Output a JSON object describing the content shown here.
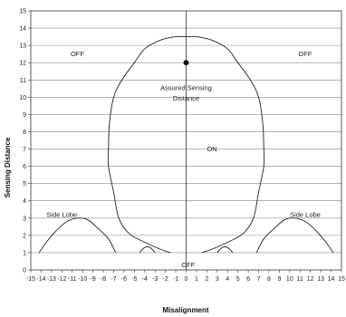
{
  "chart_data": {
    "type": "area",
    "title": "",
    "xlabel": "Misalignment",
    "ylabel": "Sensing Distance",
    "xlim": [
      -15,
      15
    ],
    "ylim": [
      0,
      15
    ],
    "grid": true,
    "x_ticks": [
      -15,
      -14,
      -13,
      -12,
      -11,
      -10,
      -9,
      -8,
      -7,
      -6,
      -5,
      -4,
      -3,
      -2,
      -1,
      0,
      1,
      2,
      3,
      4,
      5,
      6,
      7,
      8,
      9,
      10,
      11,
      12,
      13,
      14,
      15
    ],
    "y_ticks": [
      0,
      1,
      2,
      3,
      4,
      5,
      6,
      7,
      8,
      9,
      10,
      11,
      12,
      13,
      14,
      15
    ],
    "regions": [
      {
        "label": "OFF",
        "x": -10.5,
        "y": 12.5
      },
      {
        "label": "OFF",
        "x": 11.5,
        "y": 12.5
      },
      {
        "label": "ON",
        "x": 2.5,
        "y": 7
      },
      {
        "label": "OFF",
        "x": 0.2,
        "y": 0.3
      },
      {
        "label": "Side Lobe",
        "x": -12,
        "y": 3.2
      },
      {
        "label": "Side Lobe",
        "x": 11.5,
        "y": 3.2
      }
    ],
    "assured_sensing": {
      "label_line1": "Assured Sensing",
      "label_line2": "Distance",
      "x": 0,
      "y": 12
    },
    "series": [
      {
        "name": "main lobe",
        "points": [
          [
            -1.5,
            1
          ],
          [
            -2.5,
            1.2
          ],
          [
            -4,
            1.6
          ],
          [
            -5.5,
            2.1
          ],
          [
            -6.5,
            3
          ],
          [
            -7,
            4.5
          ],
          [
            -7.5,
            6
          ],
          [
            -7.5,
            7
          ],
          [
            -7.4,
            8.5
          ],
          [
            -7,
            10
          ],
          [
            -6.2,
            11
          ],
          [
            -5,
            12
          ],
          [
            -4,
            12.8
          ],
          [
            -2.5,
            13.3
          ],
          [
            -1,
            13.5
          ],
          [
            0,
            13.5
          ],
          [
            1,
            13.5
          ],
          [
            2.5,
            13.3
          ],
          [
            4,
            12.8
          ],
          [
            5,
            12
          ],
          [
            6.2,
            11
          ],
          [
            7,
            10
          ],
          [
            7.4,
            8.5
          ],
          [
            7.5,
            7
          ],
          [
            7.5,
            6
          ],
          [
            7,
            4.5
          ],
          [
            6.5,
            3
          ],
          [
            5.5,
            2.1
          ],
          [
            4,
            1.6
          ],
          [
            2.5,
            1.2
          ],
          [
            1.5,
            1
          ]
        ]
      },
      {
        "name": "left side lobe",
        "points": [
          [
            -14.2,
            1
          ],
          [
            -13.5,
            1.6
          ],
          [
            -12.5,
            2.3
          ],
          [
            -11.5,
            2.8
          ],
          [
            -10.5,
            3
          ],
          [
            -9.5,
            2.9
          ],
          [
            -8.5,
            2.4
          ],
          [
            -7.5,
            1.8
          ],
          [
            -6.8,
            1
          ]
        ]
      },
      {
        "name": "right side lobe",
        "points": [
          [
            6.8,
            1
          ],
          [
            7.5,
            1.8
          ],
          [
            8.5,
            2.4
          ],
          [
            9.5,
            2.9
          ],
          [
            10.5,
            3
          ],
          [
            11.5,
            2.8
          ],
          [
            12.5,
            2.3
          ],
          [
            13.5,
            1.6
          ],
          [
            14.2,
            1
          ]
        ]
      },
      {
        "name": "left small lobe",
        "points": [
          [
            -4.5,
            1
          ],
          [
            -4,
            1.3
          ],
          [
            -3.5,
            1.3
          ],
          [
            -3,
            1
          ]
        ]
      },
      {
        "name": "right small lobe",
        "points": [
          [
            3,
            1
          ],
          [
            3.5,
            1.3
          ],
          [
            4,
            1.3
          ],
          [
            4.5,
            1
          ]
        ]
      }
    ]
  }
}
